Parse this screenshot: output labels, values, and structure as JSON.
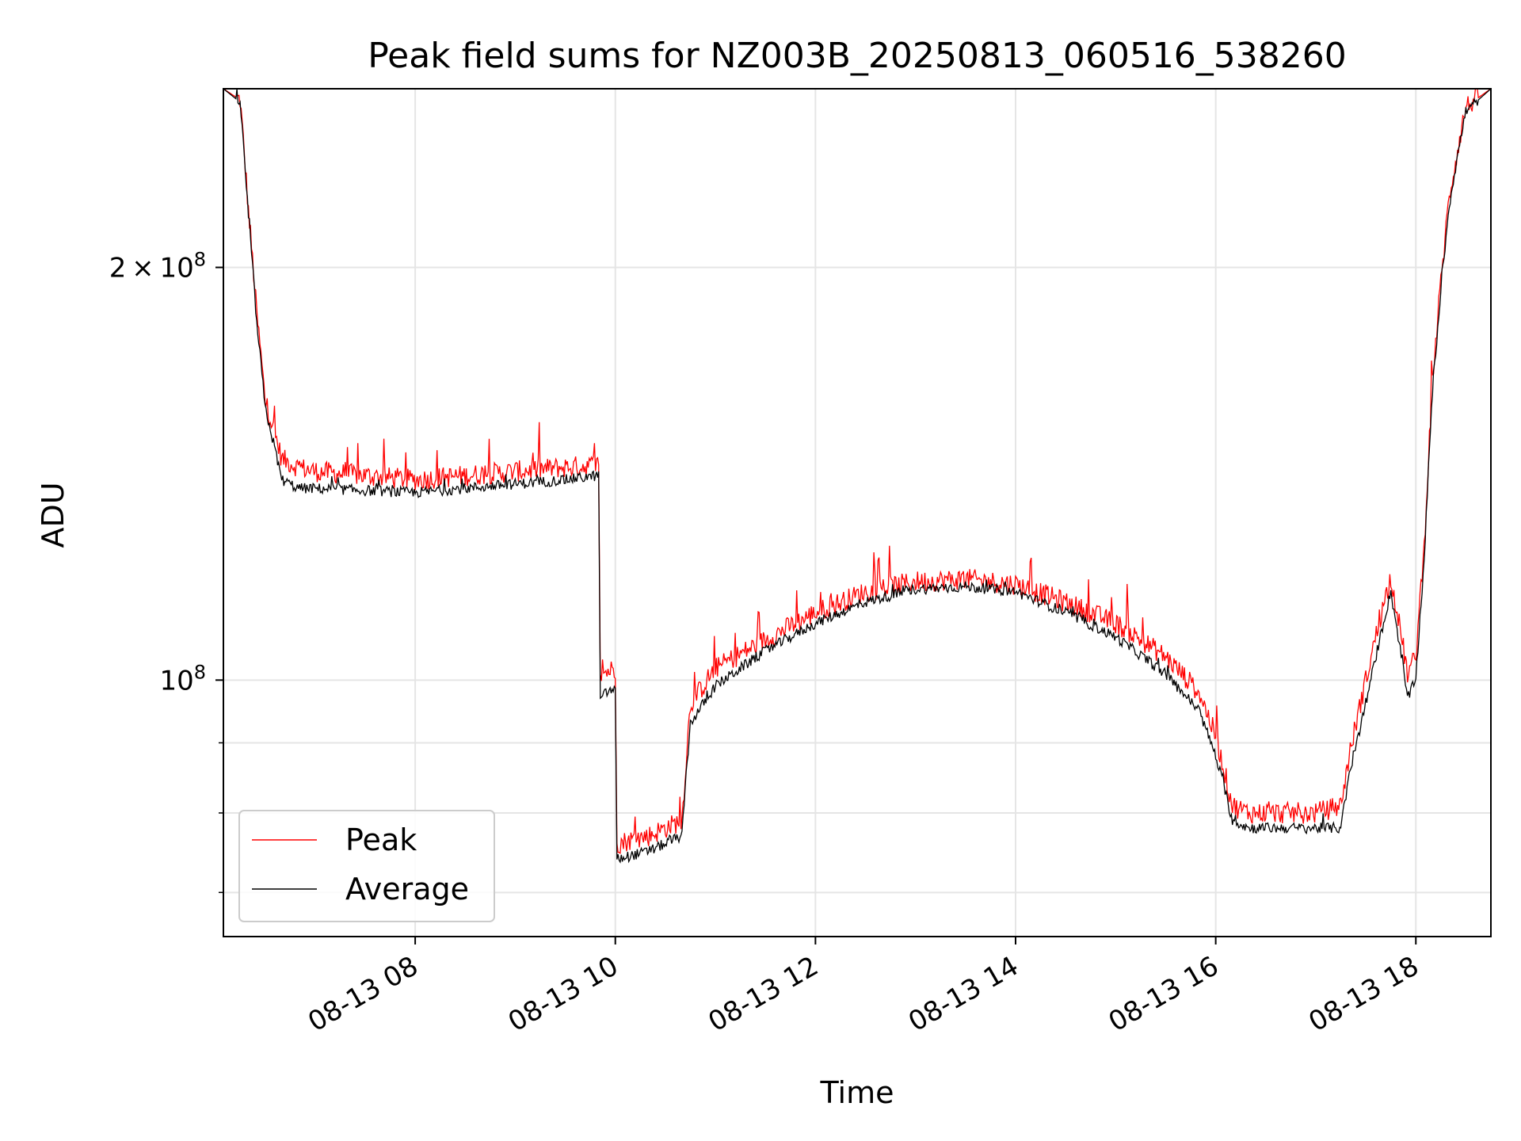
{
  "colors": {
    "peak": "#ff0000",
    "average": "#000000",
    "grid": "#e5e5e5",
    "axes": "#000000",
    "legend_border": "#cccccc"
  },
  "chart_data": {
    "type": "line",
    "title": "Peak field sums for NZ003B_20250813_060516_538260",
    "xlabel": "Time",
    "ylabel": "ADU",
    "yscale": "log",
    "grid": true,
    "legend_position": "lower-left",
    "xlim": [
      "2025-08-13 06:05",
      "2025-08-13 18:45"
    ],
    "ylim": [
      65000000,
      270000000
    ],
    "x_ticks": [
      "08-13 08",
      "08-13 10",
      "08-13 12",
      "08-13 14",
      "08-13 16",
      "08-13 18"
    ],
    "x_tick_times": [
      "2025-08-13 08:00",
      "2025-08-13 10:00",
      "2025-08-13 12:00",
      "2025-08-13 14:00",
      "2025-08-13 16:00",
      "2025-08-13 18:00"
    ],
    "y_ticks": [
      {
        "value": 200000000,
        "base": "2",
        "exp": "8",
        "times": "×"
      },
      {
        "value": 100000000,
        "base": "",
        "exp": "8",
        "times": ""
      }
    ],
    "y_minor_ticks": [
      90000000,
      80000000,
      70000000
    ],
    "x": [
      "06:05",
      "06:15",
      "06:20",
      "06:25",
      "06:30",
      "06:40",
      "06:50",
      "07:00",
      "07:30",
      "08:00",
      "08:30",
      "09:00",
      "09:30",
      "09:50",
      "09:51",
      "09:55",
      "10:00",
      "10:01",
      "10:10",
      "10:20",
      "10:30",
      "10:40",
      "10:45",
      "11:00",
      "11:30",
      "12:00",
      "12:30",
      "13:00",
      "13:30",
      "14:00",
      "14:30",
      "15:00",
      "15:30",
      "15:50",
      "16:00",
      "16:10",
      "16:20",
      "16:40",
      "17:00",
      "17:15",
      "17:20",
      "17:30",
      "17:45",
      "17:55",
      "18:00",
      "18:05",
      "18:10",
      "18:20",
      "18:30",
      "18:45"
    ],
    "series": [
      {
        "name": "Peak",
        "values": [
          270000000,
          265000000,
          220000000,
          185000000,
          160000000,
          145000000,
          143000000,
          142000000,
          141000000,
          140000000,
          141000000,
          142000000,
          143000000,
          143500000,
          101000000,
          101500000,
          102000000,
          76000000,
          76500000,
          77000000,
          78000000,
          79000000,
          96000000,
          102000000,
          107000000,
          112000000,
          116000000,
          118000000,
          118500000,
          117500000,
          114000000,
          110000000,
          104000000,
          98000000,
          91000000,
          81000000,
          80000000,
          80000000,
          80000000,
          81000000,
          88000000,
          100000000,
          119000000,
          101000000,
          104000000,
          125000000,
          165000000,
          225000000,
          262000000,
          270000000
        ]
      },
      {
        "name": "Average",
        "values": [
          270000000,
          264000000,
          218000000,
          182000000,
          158000000,
          140000000,
          138000000,
          138000000,
          137500000,
          137000000,
          138000000,
          139000000,
          140000000,
          141000000,
          97000000,
          98000000,
          98500000,
          74000000,
          74500000,
          75000000,
          76000000,
          77000000,
          93000000,
          99000000,
          105000000,
          110000000,
          114000000,
          116500000,
          117000000,
          116000000,
          112000000,
          107500000,
          101000000,
          95000000,
          88000000,
          79000000,
          78000000,
          78000000,
          78000000,
          78000000,
          85000000,
          96000000,
          116000000,
          97000000,
          100000000,
          122000000,
          162000000,
          222000000,
          260000000,
          270000000
        ]
      }
    ]
  }
}
